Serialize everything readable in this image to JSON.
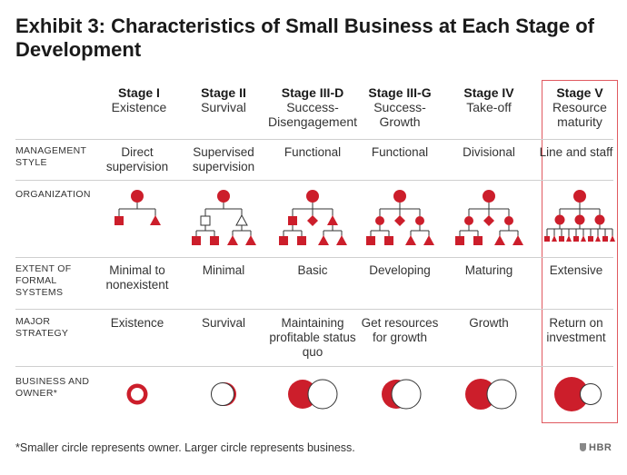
{
  "title": "Exhibit 3: Characteristics of Small Business at Each Stage of Development",
  "stages": [
    {
      "name": "Stage I",
      "sub": "Existence"
    },
    {
      "name": "Stage II",
      "sub": "Survival"
    },
    {
      "name": "Stage III-D",
      "sub": "Success-Disengagement"
    },
    {
      "name": "Stage III-G",
      "sub": "Success-Growth"
    },
    {
      "name": "Stage IV",
      "sub": "Take-off"
    },
    {
      "name": "Stage V",
      "sub": "Resource maturity"
    }
  ],
  "row_labels": {
    "management_style": "MANAGEMENT STYLE",
    "organization": "ORGANIZATION",
    "formal_systems": "EXTENT OF FORMAL SYSTEMS",
    "major_strategy": "MAJOR STRATEGY",
    "business_owner": "BUSINESS AND OWNER*"
  },
  "management_style": [
    "Direct supervision",
    "Supervised supervision",
    "Functional",
    "Functional",
    "Divisional",
    "Line and staff"
  ],
  "formal_systems": [
    "Minimal to nonexistent",
    "Minimal",
    "Basic",
    "Developing",
    "Maturing",
    "Extensive"
  ],
  "major_strategy": [
    "Existence",
    "Survival",
    "Maintaining profitable status quo",
    "Get resources for growth",
    "Growth",
    "Return on investment"
  ],
  "business_owner": [
    {
      "business": "small",
      "owner": "ring"
    },
    {
      "business": "sliver",
      "owner": "large"
    },
    {
      "business": "half",
      "owner": "large"
    },
    {
      "business": "crescent",
      "owner": "large"
    },
    {
      "business": "large",
      "owner": "large"
    },
    {
      "business": "largest",
      "owner": "small"
    }
  ],
  "colors": {
    "accent": "#cc1e2b",
    "highlight_border": "#e05a60",
    "rule": "#cfcfcf"
  },
  "highlighted_stage": 5,
  "footnote": "*Smaller circle represents owner. Larger circle represents business.",
  "logo": "HBR"
}
